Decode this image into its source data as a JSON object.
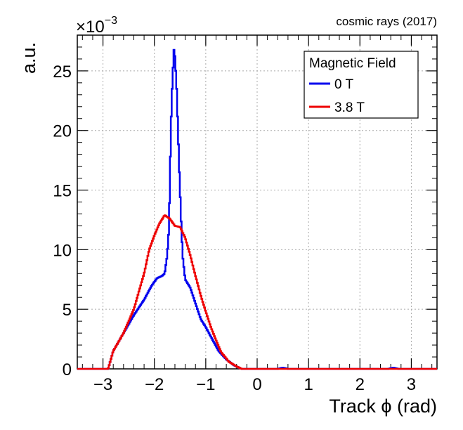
{
  "chart_data": {
    "type": "line",
    "annotation": "cosmic rays (2017)",
    "xlabel": "Track ϕ (rad)",
    "ylabel": "a.u.",
    "y_multiplier": "×10",
    "y_exponent": "−3",
    "xlim": [
      -3.5,
      3.5
    ],
    "ylim": [
      0,
      0.028
    ],
    "grid": true,
    "legend": {
      "title": "Magnetic Field",
      "placement": "top-right"
    },
    "x_ticks": [
      {
        "value": -3,
        "label": "−3"
      },
      {
        "value": -2,
        "label": "−2"
      },
      {
        "value": -1,
        "label": "−1"
      },
      {
        "value": 0,
        "label": "0"
      },
      {
        "value": 1,
        "label": "1"
      },
      {
        "value": 2,
        "label": "2"
      },
      {
        "value": 3,
        "label": "3"
      }
    ],
    "y_ticks": [
      {
        "value": 0,
        "label": "0"
      },
      {
        "value": 0.005,
        "label": "5"
      },
      {
        "value": 0.01,
        "label": "10"
      },
      {
        "value": 0.015,
        "label": "15"
      },
      {
        "value": 0.02,
        "label": "20"
      },
      {
        "value": 0.025,
        "label": "25"
      }
    ],
    "series": [
      {
        "name": "0 T",
        "color": "#0000ee",
        "points": [
          [
            -3.5,
            0
          ],
          [
            -2.9,
            0
          ],
          [
            -2.8,
            0.0015
          ],
          [
            -2.6,
            0.003
          ],
          [
            -2.4,
            0.0045
          ],
          [
            -2.2,
            0.0058
          ],
          [
            -2.05,
            0.007
          ],
          [
            -1.95,
            0.0076
          ],
          [
            -1.85,
            0.0078
          ],
          [
            -1.8,
            0.008
          ],
          [
            -1.75,
            0.0095
          ],
          [
            -1.72,
            0.0115
          ],
          [
            -1.7,
            0.015
          ],
          [
            -1.68,
            0.02
          ],
          [
            -1.65,
            0.024
          ],
          [
            -1.62,
            0.0268
          ],
          [
            -1.6,
            0.0262
          ],
          [
            -1.57,
            0.024
          ],
          [
            -1.54,
            0.02
          ],
          [
            -1.51,
            0.016
          ],
          [
            -1.48,
            0.0125
          ],
          [
            -1.45,
            0.0095
          ],
          [
            -1.4,
            0.0075
          ],
          [
            -1.3,
            0.0068
          ],
          [
            -1.2,
            0.0055
          ],
          [
            -1.1,
            0.0042
          ],
          [
            -1.0,
            0.0035
          ],
          [
            -0.9,
            0.0027
          ],
          [
            -0.75,
            0.0015
          ],
          [
            -0.6,
            0.0008
          ],
          [
            -0.45,
            0.0003
          ],
          [
            -0.3,
            0
          ],
          [
            0.4,
            0
          ],
          [
            0.5,
            0.0001
          ],
          [
            0.6,
            0
          ],
          [
            2.55,
            0
          ],
          [
            2.65,
            0.0001
          ],
          [
            2.75,
            0
          ],
          [
            3.5,
            0
          ]
        ]
      },
      {
        "name": "3.8 T",
        "color": "#ee0000",
        "points": [
          [
            -3.5,
            0
          ],
          [
            -2.9,
            0
          ],
          [
            -2.8,
            0.0015
          ],
          [
            -2.6,
            0.003
          ],
          [
            -2.4,
            0.005
          ],
          [
            -2.3,
            0.0065
          ],
          [
            -2.2,
            0.008
          ],
          [
            -2.1,
            0.01
          ],
          [
            -2.0,
            0.0112
          ],
          [
            -1.9,
            0.0122
          ],
          [
            -1.8,
            0.0129
          ],
          [
            -1.7,
            0.0126
          ],
          [
            -1.6,
            0.012
          ],
          [
            -1.5,
            0.0119
          ],
          [
            -1.4,
            0.011
          ],
          [
            -1.3,
            0.0095
          ],
          [
            -1.2,
            0.0078
          ],
          [
            -1.1,
            0.0062
          ],
          [
            -1.0,
            0.0048
          ],
          [
            -0.9,
            0.0035
          ],
          [
            -0.8,
            0.0024
          ],
          [
            -0.7,
            0.0014
          ],
          [
            -0.55,
            0.0006
          ],
          [
            -0.4,
            0.0002
          ],
          [
            -0.3,
            0
          ],
          [
            3.5,
            0
          ]
        ]
      }
    ]
  }
}
